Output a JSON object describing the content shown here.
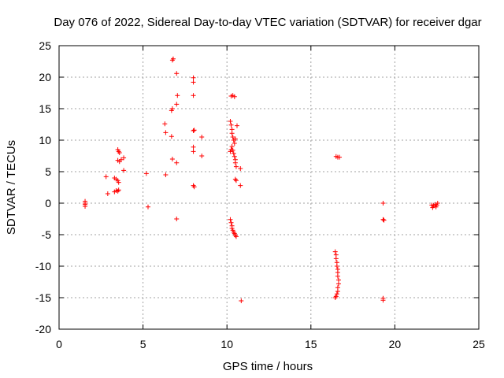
{
  "chart_data": {
    "type": "scatter",
    "title": "Day 076 of 2022, Sidereal Day-to-day VTEC variation (SDTVAR) for receiver dgar",
    "xlabel": "GPS time / hours",
    "ylabel": "SDTVAR / TECUs",
    "xlim": [
      0,
      25
    ],
    "ylim": [
      -20,
      25
    ],
    "xticks": [
      0,
      5,
      10,
      15,
      20,
      25
    ],
    "yticks": [
      -20,
      -15,
      -10,
      -5,
      0,
      5,
      10,
      15,
      20,
      25
    ],
    "grid": true,
    "marker": "+",
    "color": "#ff0000",
    "series": [
      {
        "name": "SDTVAR",
        "points": [
          [
            1.55,
            0.3
          ],
          [
            1.55,
            0.0
          ],
          [
            1.55,
            -0.2
          ],
          [
            1.55,
            -0.5
          ],
          [
            2.8,
            4.2
          ],
          [
            2.9,
            1.5
          ],
          [
            3.3,
            4.0
          ],
          [
            3.4,
            3.8
          ],
          [
            3.5,
            3.6
          ],
          [
            3.55,
            3.3
          ],
          [
            3.3,
            1.8
          ],
          [
            3.4,
            2.0
          ],
          [
            3.5,
            1.9
          ],
          [
            3.55,
            2.1
          ],
          [
            3.5,
            8.5
          ],
          [
            3.55,
            8.2
          ],
          [
            3.6,
            8.0
          ],
          [
            3.5,
            6.8
          ],
          [
            3.6,
            6.6
          ],
          [
            3.7,
            6.9
          ],
          [
            3.85,
            7.2
          ],
          [
            3.85,
            5.2
          ],
          [
            5.2,
            4.7
          ],
          [
            5.3,
            -0.6
          ],
          [
            6.3,
            12.6
          ],
          [
            6.35,
            11.2
          ],
          [
            6.35,
            4.5
          ],
          [
            6.75,
            22.7
          ],
          [
            6.8,
            22.9
          ],
          [
            6.7,
            14.7
          ],
          [
            6.75,
            15.0
          ],
          [
            6.7,
            10.6
          ],
          [
            6.75,
            7.0
          ],
          [
            7.0,
            20.6
          ],
          [
            7.05,
            17.1
          ],
          [
            7.0,
            15.7
          ],
          [
            7.0,
            6.4
          ],
          [
            7.0,
            -2.5
          ],
          [
            8.0,
            19.9
          ],
          [
            8.0,
            19.2
          ],
          [
            8.0,
            17.1
          ],
          [
            8.0,
            11.5
          ],
          [
            8.05,
            11.6
          ],
          [
            8.0,
            8.9
          ],
          [
            8.0,
            8.2
          ],
          [
            8.0,
            2.8
          ],
          [
            8.05,
            2.6
          ],
          [
            8.5,
            10.5
          ],
          [
            8.5,
            7.5
          ],
          [
            10.25,
            17.0
          ],
          [
            10.35,
            17.1
          ],
          [
            10.45,
            16.9
          ],
          [
            10.2,
            13.0
          ],
          [
            10.25,
            12.4
          ],
          [
            10.3,
            11.7
          ],
          [
            10.3,
            11.1
          ],
          [
            10.35,
            10.5
          ],
          [
            10.4,
            10.0
          ],
          [
            10.45,
            9.5
          ],
          [
            10.3,
            9.0
          ],
          [
            10.35,
            8.4
          ],
          [
            10.4,
            7.9
          ],
          [
            10.45,
            7.4
          ],
          [
            10.5,
            6.9
          ],
          [
            10.5,
            6.4
          ],
          [
            10.55,
            5.8
          ],
          [
            10.2,
            8.2
          ],
          [
            10.25,
            8.5
          ],
          [
            10.5,
            10.2
          ],
          [
            10.6,
            12.3
          ],
          [
            10.5,
            3.8
          ],
          [
            10.55,
            3.6
          ],
          [
            10.8,
            5.5
          ],
          [
            10.8,
            2.8
          ],
          [
            10.2,
            -2.6
          ],
          [
            10.25,
            -3.1
          ],
          [
            10.3,
            -3.6
          ],
          [
            10.3,
            -4.0
          ],
          [
            10.35,
            -4.3
          ],
          [
            10.4,
            -4.6
          ],
          [
            10.45,
            -4.8
          ],
          [
            10.5,
            -5.1
          ],
          [
            10.55,
            -5.3
          ],
          [
            10.85,
            -15.5
          ],
          [
            16.5,
            7.4
          ],
          [
            16.6,
            7.3
          ],
          [
            16.7,
            7.3
          ],
          [
            16.45,
            -7.7
          ],
          [
            16.5,
            -8.2
          ],
          [
            16.5,
            -8.8
          ],
          [
            16.55,
            -9.4
          ],
          [
            16.55,
            -10.0
          ],
          [
            16.6,
            -10.5
          ],
          [
            16.6,
            -11.0
          ],
          [
            16.6,
            -11.6
          ],
          [
            16.65,
            -12.2
          ],
          [
            16.65,
            -12.8
          ],
          [
            16.6,
            -13.4
          ],
          [
            16.6,
            -14.0
          ],
          [
            16.55,
            -14.4
          ],
          [
            16.5,
            -14.8
          ],
          [
            16.45,
            -15.0
          ],
          [
            19.3,
            0.0
          ],
          [
            19.3,
            -2.6
          ],
          [
            19.35,
            -2.7
          ],
          [
            19.3,
            -15.1
          ],
          [
            19.3,
            -15.4
          ],
          [
            22.2,
            -0.3
          ],
          [
            22.25,
            -0.7
          ],
          [
            22.3,
            -0.4
          ],
          [
            22.4,
            -0.2
          ],
          [
            22.45,
            -0.6
          ],
          [
            22.5,
            -0.3
          ],
          [
            22.55,
            0.0
          ]
        ]
      }
    ]
  }
}
